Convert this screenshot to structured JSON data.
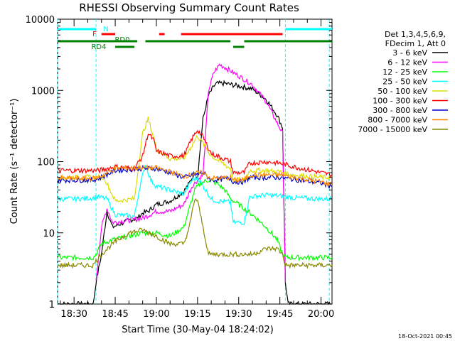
{
  "chart_data": {
    "type": "line",
    "title": "RHESSI Observing Summary Count Rates",
    "xlabel": "Start Time (30-May-04 18:24:02)",
    "ylabel": "Count Rate (s⁻¹ detector⁻¹)",
    "y_scale": "log",
    "ylim": [
      1,
      10000
    ],
    "xlim": [
      "18:24",
      "20:04"
    ],
    "x_ticks": [
      "18:30",
      "18:45",
      "19:00",
      "19:15",
      "19:30",
      "19:45",
      "20:00"
    ],
    "y_ticks": [
      "1",
      "10",
      "100",
      "1000",
      "10000"
    ],
    "legend_header": [
      "Det 1,3,4,5,6,9,",
      "FDecim 1, Att 0"
    ],
    "timestamp": "18-Oct-2021 00:45",
    "flags": [
      {
        "label": "N",
        "color": "#00ffff",
        "segments": [
          [
            "18:24",
            "18:38"
          ],
          [
            "19:47",
            "20:04"
          ]
        ]
      },
      {
        "label": "F",
        "color": "#ff0000",
        "segments": [
          [
            "18:40",
            "18:45"
          ],
          [
            "19:01",
            "19:03"
          ],
          [
            "19:09",
            "19:46"
          ]
        ]
      },
      {
        "label": "RD0",
        "color": "#008000",
        "segments": [
          [
            "18:24",
            "18:53"
          ],
          [
            "18:56",
            "19:27"
          ],
          [
            "19:32",
            "20:04"
          ]
        ]
      },
      {
        "label": "RD4",
        "color": "#008000",
        "segments": [
          [
            "18:45",
            "18:52"
          ],
          [
            "19:28",
            "19:32"
          ]
        ]
      }
    ],
    "vlines": [
      "18:24",
      "18:38",
      "19:47",
      "20:03"
    ],
    "series": [
      {
        "name": "3 - 6 keV",
        "color": "#000000",
        "x": [
          "18:24",
          "18:37",
          "18:38",
          "18:40",
          "18:42",
          "18:44",
          "18:50",
          "18:53",
          "18:55",
          "18:57",
          "19:00",
          "19:05",
          "19:10",
          "19:12",
          "19:14",
          "19:15",
          "19:17",
          "19:19",
          "19:21",
          "19:22",
          "19:25",
          "19:30",
          "19:35",
          "19:40",
          "19:44",
          "19:46",
          "19:47",
          "19:48",
          "20:04"
        ],
        "values": [
          1,
          1,
          2,
          5,
          20,
          12,
          15,
          16,
          19,
          20,
          25,
          28,
          38,
          50,
          70,
          60,
          400,
          850,
          1150,
          1250,
          1250,
          1150,
          1050,
          750,
          450,
          300,
          2,
          1,
          1
        ]
      },
      {
        "name": "6 - 12 keV",
        "color": "#ff00ff",
        "x": [
          "18:38",
          "18:40",
          "18:42",
          "18:44",
          "18:50",
          "18:55",
          "19:00",
          "19:05",
          "19:10",
          "19:13",
          "19:15",
          "19:17",
          "19:19",
          "19:21",
          "19:23",
          "19:25",
          "19:30",
          "19:35",
          "19:40",
          "19:44",
          "19:46",
          "19:47"
        ],
        "values": [
          2,
          12,
          22,
          14,
          15,
          16,
          20,
          20,
          25,
          45,
          55,
          65,
          1000,
          1800,
          2300,
          2100,
          1600,
          1200,
          700,
          350,
          250,
          2
        ]
      },
      {
        "name": "12 - 25 keV",
        "color": "#00ff00",
        "x": [
          "18:24",
          "18:30",
          "18:37",
          "18:38",
          "18:40",
          "18:44",
          "18:50",
          "18:55",
          "19:00",
          "19:05",
          "19:10",
          "19:14",
          "19:16",
          "19:19",
          "19:22",
          "19:25",
          "19:27",
          "19:30",
          "19:35",
          "19:40",
          "19:44",
          "19:46",
          "19:47",
          "20:04"
        ],
        "values": [
          4.5,
          4.5,
          4.5,
          5,
          7,
          8,
          9,
          10,
          10,
          9,
          12,
          40,
          50,
          55,
          50,
          40,
          30,
          25,
          18,
          12,
          8,
          5,
          4.5,
          4.5
        ]
      },
      {
        "name": "25 - 50 keV",
        "color": "#00ffff",
        "x": [
          "18:24",
          "18:30",
          "18:37",
          "18:39",
          "18:42",
          "18:45",
          "18:52",
          "18:54",
          "18:56",
          "18:58",
          "19:00",
          "19:05",
          "19:10",
          "19:13",
          "19:15",
          "19:18",
          "19:20",
          "19:22",
          "19:27",
          "19:28",
          "19:32",
          "19:34",
          "19:40",
          "19:45",
          "19:50",
          "20:00",
          "20:04"
        ],
        "values": [
          30,
          30,
          31,
          32,
          30,
          18,
          17,
          45,
          90,
          55,
          45,
          40,
          35,
          55,
          60,
          40,
          30,
          28,
          27,
          14,
          14,
          32,
          34,
          33,
          31,
          30,
          30
        ]
      },
      {
        "name": "50 - 100 keV",
        "color": "#dddd00",
        "x": [
          "18:24",
          "18:37",
          "18:39",
          "18:41",
          "18:45",
          "18:52",
          "18:55",
          "18:57",
          "18:59",
          "19:00",
          "19:05",
          "19:10",
          "19:13",
          "19:15",
          "19:17",
          "19:20",
          "19:27",
          "19:28",
          "19:32",
          "19:34",
          "19:40",
          "19:45",
          "19:50",
          "20:00",
          "20:04"
        ],
        "values": [
          60,
          60,
          60,
          60,
          28,
          30,
          250,
          400,
          220,
          150,
          110,
          110,
          170,
          230,
          180,
          120,
          80,
          55,
          55,
          75,
          75,
          72,
          65,
          60,
          60
        ]
      },
      {
        "name": "100 - 300 keV",
        "color": "#ff0000",
        "x": [
          "18:24",
          "18:37",
          "18:39",
          "18:41",
          "18:45",
          "18:52",
          "18:55",
          "18:57",
          "18:59",
          "19:00",
          "19:05",
          "19:10",
          "19:13",
          "19:15",
          "19:17",
          "19:20",
          "19:27",
          "19:28",
          "19:32",
          "19:34",
          "19:40",
          "19:45",
          "19:50",
          "20:00",
          "20:04"
        ],
        "values": [
          75,
          75,
          75,
          78,
          85,
          80,
          120,
          250,
          200,
          140,
          120,
          120,
          210,
          280,
          220,
          130,
          100,
          70,
          70,
          95,
          100,
          95,
          85,
          70,
          65
        ]
      },
      {
        "name": "300 - 800 keV",
        "color": "#0000cc",
        "x": [
          "18:24",
          "18:37",
          "18:39",
          "18:45",
          "18:55",
          "19:00",
          "19:05",
          "19:10",
          "19:14",
          "19:17",
          "19:20",
          "19:27",
          "19:28",
          "19:32",
          "19:34",
          "19:45",
          "20:00",
          "20:04"
        ],
        "values": [
          55,
          55,
          58,
          75,
          80,
          80,
          70,
          60,
          65,
          70,
          55,
          58,
          52,
          52,
          60,
          60,
          50,
          45
        ]
      },
      {
        "name": "800 - 7000 keV",
        "color": "#ff8800",
        "x": [
          "18:24",
          "18:37",
          "18:39",
          "18:45",
          "18:55",
          "19:00",
          "19:05",
          "19:10",
          "19:14",
          "19:17",
          "19:20",
          "19:27",
          "19:28",
          "19:32",
          "19:34",
          "19:45",
          "20:00",
          "20:04"
        ],
        "values": [
          58,
          58,
          60,
          80,
          82,
          82,
          72,
          62,
          68,
          70,
          58,
          60,
          55,
          55,
          65,
          65,
          52,
          48
        ]
      },
      {
        "name": "7000 - 15000 keV",
        "color": "#888800",
        "x": [
          "18:24",
          "18:30",
          "18:37",
          "18:38",
          "18:40",
          "18:44",
          "18:50",
          "18:55",
          "19:00",
          "19:05",
          "19:10",
          "19:12",
          "19:14",
          "19:15",
          "19:17",
          "19:19",
          "19:21",
          "19:30",
          "19:35",
          "19:40",
          "19:44",
          "19:46",
          "19:47",
          "20:04"
        ],
        "values": [
          3.5,
          3.5,
          3.5,
          4,
          5,
          7,
          10,
          11,
          9,
          7,
          7,
          12,
          30,
          28,
          12,
          5,
          5,
          5,
          5,
          6,
          6,
          5,
          3.5,
          3.5
        ]
      }
    ]
  }
}
